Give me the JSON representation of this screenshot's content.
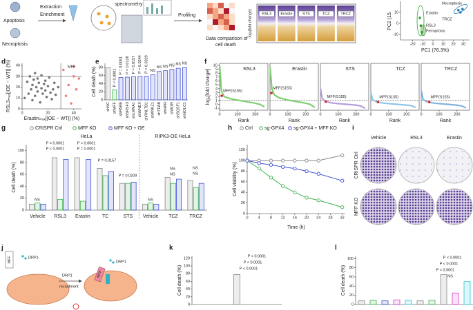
{
  "panel_labels": [
    "d",
    "e",
    "f",
    "g",
    "h",
    "i",
    "j",
    "k",
    "l"
  ],
  "panel_a": {
    "labels": [
      "Apoptosis",
      "Necroptosis",
      "Extraction",
      "Enrichment",
      "spectrometry",
      "Profiling",
      "Data comparison of",
      "cell death"
    ]
  },
  "panel_i": {
    "columns": [
      "Vehicle",
      "RSL3",
      "Erastin"
    ],
    "rows": [
      "CRISPR Ctrl",
      "MFF KO"
    ]
  },
  "panel_j": {
    "labels": [
      "MFF",
      "DRP1",
      "DRP1",
      "recruitment",
      "MFF",
      "DRP1"
    ]
  },
  "chart_data": [
    {
      "type": "strip",
      "ylabel": "log₂[fold change]",
      "categories": [
        "RSL3",
        "Erastin",
        "STS",
        "TCZ",
        "TRCZ"
      ]
    },
    {
      "type": "scatter",
      "xlabel": "PC1 (76.3%)",
      "ylabel": "PC2 (15.",
      "xlim": [
        -32,
        36
      ],
      "xticks": [
        -20,
        -10,
        0,
        10,
        20,
        30
      ],
      "ylim": [
        -15,
        20
      ],
      "yticks": [
        -10,
        0,
        10
      ],
      "annotations": [
        "Necroptosis",
        "Erastin",
        "RSL3",
        "Ferroptosis",
        "TRCZ"
      ],
      "series": [
        {
          "color": "#2ca02c",
          "x": [
            -13,
            -12,
            -11
          ],
          "y": [
            5,
            -2,
            -8
          ]
        },
        {
          "color": "#1f77b4",
          "x": [
            25,
            27,
            29
          ],
          "y": [
            12,
            10,
            13
          ]
        }
      ]
    },
    {
      "type": "scatter",
      "xlabel": "Erastinₘₐₓ[|OE − WT|] (%)",
      "ylabel": "RSL3ₘₐₓ[|OE − WT|] (%)",
      "xlim": [
        0,
        46
      ],
      "xticks": [
        0,
        20,
        40
      ],
      "ylim": [
        0,
        42
      ],
      "yticks": [
        0,
        10,
        20,
        30,
        40
      ],
      "thresholds": {
        "x": 30,
        "y": 30
      },
      "annotations": [
        "MFF"
      ],
      "series": [
        {
          "color": "#777777",
          "x": [
            2,
            4,
            5,
            6,
            7,
            8,
            8,
            9,
            10,
            10,
            11,
            12,
            12,
            13,
            14,
            15,
            15,
            16,
            17,
            18,
            18,
            19,
            20,
            21,
            22,
            23,
            24,
            25,
            26,
            28
          ],
          "y": [
            10,
            25,
            14,
            30,
            18,
            22,
            8,
            27,
            12,
            33,
            20,
            16,
            28,
            24,
            6,
            19,
            31,
            14,
            23,
            17,
            26,
            11,
            21,
            29,
            15,
            9,
            18,
            24,
            13,
            20
          ]
        },
        {
          "color": "#f08080",
          "x": [
            32,
            34,
            36,
            38,
            40,
            42,
            44,
            40
          ],
          "y": [
            36,
            12,
            22,
            5,
            30,
            18,
            28,
            39
          ]
        }
      ]
    },
    {
      "type": "bar",
      "ylabel": "Cell death (%)",
      "ylim": [
        0,
        90
      ],
      "yticks": [
        0,
        20,
        40,
        60,
        80
      ],
      "categories": [
        "shNC",
        "shMFF",
        "shPARB",
        "shSRSF3",
        "shLMNA1",
        "shWNEX",
        "shRNLTD1",
        "shANKZ1",
        "shTFAB",
        "shNPR",
        "shAGR",
        "shSQSF1",
        "shNOLC1"
      ],
      "values": [
        80,
        25,
        55,
        56,
        57,
        58,
        58,
        62,
        70,
        72,
        75,
        78,
        80
      ],
      "colors": [
        "#888888",
        "#3cb44b",
        "#3d4fd6",
        "#3d4fd6",
        "#3d4fd6",
        "#3d4fd6",
        "#3d4fd6",
        "#3d4fd6",
        "#3d4fd6",
        "#3d4fd6",
        "#3d4fd6",
        "#3d4fd6",
        "#3d4fd6"
      ],
      "annotations": [
        "P < 0.0001",
        "P = 0.0081",
        "P = 0.0128",
        "P = 0.0157",
        "P = 0.0244",
        "P = 0.0329",
        "NS",
        "NS",
        "NS",
        "NS",
        "NS",
        "NS"
      ]
    },
    {
      "type": "rank",
      "title": "RSL3",
      "ylabel": "log₂[fold change]",
      "xlabel": "Rank",
      "xlim": [
        0,
        270
      ],
      "xticks": [
        0,
        100,
        200
      ],
      "ylim": [
        -1.5,
        10.5
      ],
      "yticks": [
        -1,
        0,
        1,
        2,
        3,
        4,
        5,
        6,
        7,
        8,
        9,
        10
      ],
      "threshold": 1,
      "color": "#7ccf6e",
      "x": [
        1,
        10,
        25,
        50,
        75,
        100,
        125,
        150,
        175,
        200,
        225,
        250
      ],
      "values": [
        9.8,
        3.5,
        2,
        1.6,
        1.3,
        1.1,
        0.9,
        0.7,
        0.5,
        0.3,
        0,
        -0.6
      ],
      "highlight": {
        "x": 12,
        "y": 2.2
      },
      "annotation": "MFF(S155)"
    },
    {
      "type": "rank",
      "title": "Erastin",
      "xlabel": "Rank",
      "xlim": [
        0,
        270
      ],
      "xticks": [
        0,
        100,
        200
      ],
      "ylim": [
        -1.5,
        10.5
      ],
      "threshold": 1,
      "color": "#7ccf6e",
      "x": [
        1,
        10,
        25,
        50,
        75,
        100,
        125,
        150,
        175,
        200,
        225,
        250
      ],
      "values": [
        9.5,
        4,
        2.4,
        1.7,
        1.4,
        1.1,
        0.9,
        0.7,
        0.5,
        0.3,
        0,
        -0.8
      ],
      "highlight": {
        "x": 8,
        "y": 2.9
      },
      "annotation": "MFF(S155)"
    },
    {
      "type": "rank",
      "title": "STS",
      "xlabel": "Rank",
      "xlim": [
        0,
        270
      ],
      "xticks": [
        0,
        100,
        200
      ],
      "ylim": [
        -1.5,
        10.5
      ],
      "threshold": 1,
      "color": "#b39ddb",
      "x": [
        1,
        10,
        25,
        50,
        75,
        100,
        125,
        150,
        175,
        200,
        225,
        250
      ],
      "values": [
        4,
        1.5,
        0.9,
        0.5,
        0.3,
        0.2,
        0.1,
        0,
        -0.1,
        -0.2,
        -0.4,
        -1
      ],
      "highlight": {
        "x": 30,
        "y": 0.7
      },
      "annotation": "MFF(S155)"
    },
    {
      "type": "rank",
      "title": "TCZ",
      "xlabel": "Rank",
      "xlim": [
        0,
        270
      ],
      "xticks": [
        0,
        100,
        200
      ],
      "ylim": [
        -1.5,
        10.5
      ],
      "threshold": 1,
      "color": "#90c4e8",
      "x": [
        1,
        10,
        25,
        50,
        75,
        100,
        125,
        150,
        175,
        200,
        225,
        250
      ],
      "values": [
        3,
        1.2,
        0.8,
        0.5,
        0.3,
        0.2,
        0.1,
        0,
        -0.1,
        -0.2,
        -0.3,
        -0.8
      ],
      "highlight": {
        "x": 40,
        "y": 0.6
      },
      "annotation": "MFF(S155)"
    },
    {
      "type": "rank",
      "title": "TRCZ",
      "xlabel": "Rank",
      "xlim": [
        0,
        270
      ],
      "xticks": [
        0,
        100,
        200
      ],
      "ylim": [
        -1.5,
        10.5
      ],
      "threshold": 1,
      "color": "#7fb3e0",
      "x": [
        1,
        10,
        25,
        50,
        75,
        100,
        125,
        150,
        175,
        200,
        225,
        250
      ],
      "values": [
        3.5,
        1.3,
        0.8,
        0.5,
        0.3,
        0.2,
        0.1,
        0,
        -0.1,
        -0.2,
        -0.4,
        -0.9
      ],
      "highlight": {
        "x": 45,
        "y": 0.6
      },
      "annotation": "MFF(S155)"
    },
    {
      "type": "grouped_bar",
      "ylabel": "Cell death (%)",
      "ylim": [
        0,
        110
      ],
      "yticks": [
        0,
        20,
        40,
        60,
        80,
        100
      ],
      "categories": [
        "Vehicle",
        "RSL3",
        "Erastin",
        "TC",
        "STS",
        "Vehicle",
        "TCZ",
        "TRCZ"
      ],
      "groups": [
        "HeLa",
        "RIPK3-OE HeLa"
      ],
      "series": [
        {
          "name": "CRISPR Ctrl",
          "color": "#888888",
          "values": [
            10,
            88,
            88,
            70,
            45,
            10,
            55,
            50
          ]
        },
        {
          "name": "MFF KO",
          "color": "#3cb44b",
          "values": [
            12,
            18,
            15,
            58,
            45,
            12,
            45,
            38
          ]
        },
        {
          "name": "MFF KO + OE",
          "color": "#3d4fd6",
          "values": [
            10,
            85,
            85,
            65,
            47,
            10,
            52,
            45
          ]
        }
      ],
      "annotations": [
        "NS",
        "P = 0.0001",
        "P < 0.0001",
        "P < 0.0001",
        "P = 0.0001",
        "P = 0.0157",
        "P = 0.0209",
        "NS",
        "NS",
        "NS",
        "NS",
        "NS"
      ]
    },
    {
      "type": "line",
      "xlabel": "Time (h)",
      "ylabel": "Cell viability (%)",
      "xlim": [
        0,
        33
      ],
      "xticks": [
        0,
        4,
        8,
        12,
        16,
        20,
        24,
        28,
        32
      ],
      "ylim": [
        0,
        130
      ],
      "yticks": [
        0,
        20,
        40,
        60,
        80,
        100,
        120
      ],
      "x": [
        0,
        4,
        8,
        12,
        16,
        20,
        24,
        32
      ],
      "series": [
        {
          "name": "Ctrl",
          "color": "#888888",
          "values": [
            100,
            100,
            100,
            100,
            100,
            100,
            100,
            110
          ]
        },
        {
          "name": "sg-GPX4",
          "color": "#3cb44b",
          "values": [
            100,
            85,
            68,
            52,
            40,
            30,
            25,
            12
          ]
        },
        {
          "name": "sg-GPX4 + MFF KO",
          "color": "#3d4fd6",
          "values": [
            100,
            95,
            92,
            88,
            85,
            80,
            75,
            62
          ]
        }
      ]
    },
    {
      "type": "bar",
      "ylabel": "Cell death (%)",
      "ylim": [
        0,
        125
      ],
      "yticks": [
        0,
        20,
        40,
        60,
        80,
        100,
        120
      ],
      "categories": [
        null
      ],
      "values": [
        78
      ],
      "color": "#888888",
      "annotations": [
        "P < 0.0001",
        "P < 0.0001",
        "P < 0.0001"
      ]
    },
    {
      "type": "bar",
      "ylabel": "Cell death (%)",
      "ylim": [
        0,
        105
      ],
      "yticks": [
        0,
        20,
        40,
        60,
        80,
        100
      ],
      "categories": [
        null,
        null,
        null,
        null,
        null,
        null,
        null,
        null,
        null,
        null
      ],
      "values": [
        8,
        9,
        8,
        10,
        9,
        8,
        9,
        65,
        25,
        50
      ],
      "colors": [
        "#888888",
        "#3cb44b",
        "#3d4fd6",
        "#d63cc6",
        "#2bc4d9",
        "#888888",
        "#3cb44b",
        "#888888",
        "#d63cc6",
        "#2bc4d9"
      ],
      "annotations": [
        "P < 0.0001",
        "P < 0.0001",
        "P < 0.0001",
        "NS"
      ]
    }
  ]
}
